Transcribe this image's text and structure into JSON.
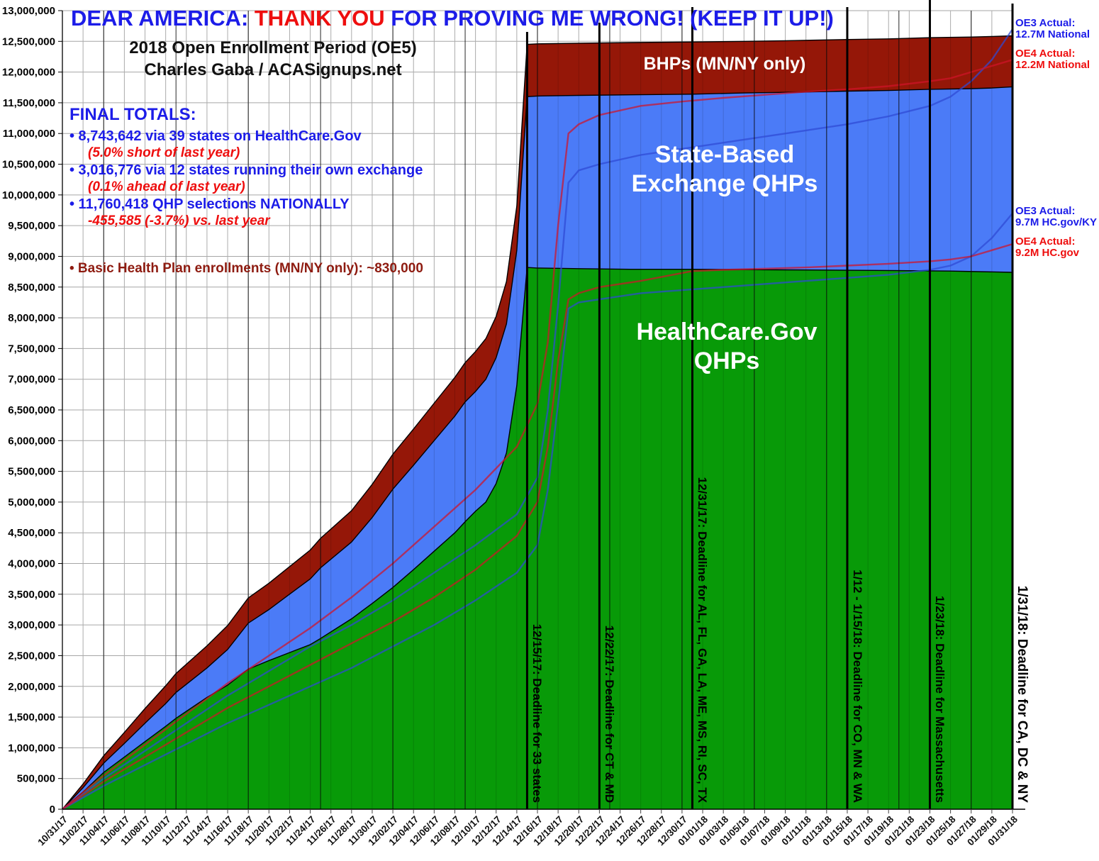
{
  "header": {
    "title_part1": "DEAR AMERICA: ",
    "title_part2": "THANK YOU",
    "title_part3": " FOR PROVING ME WRONG! (KEEP IT UP!)",
    "subtitle_line1": "2018 Open Enrollment Period (OE5)",
    "subtitle_line2": "Charles Gaba / ACASignups.net"
  },
  "totals": {
    "heading": "FINAL TOTALS:",
    "items": [
      {
        "text": "• 8,743,642 via 39 states on HealthCare.Gov",
        "note": "(5.0% short of last year)"
      },
      {
        "text": "• 3,016,776 via 12 states running their own exchange",
        "note": "(0.1% ahead of last year)"
      },
      {
        "text": "• 11,760,418 QHP selections NATIONALLY",
        "note": "-455,585 (-3.7%) vs. last year"
      }
    ],
    "bhp": "• Basic Health Plan enrollments (MN/NY only): ~830,000"
  },
  "area_labels": {
    "bhp": "BHPs (MN/NY only)",
    "sbe1": "State-Based",
    "sbe2": "Exchange QHPs",
    "hc1": "HealthCare.Gov",
    "hc2": "QHPs"
  },
  "annotations": [
    {
      "line1": "OE3 Actual:",
      "line2": "12.7M National"
    },
    {
      "line1": "OE4 Actual:",
      "line2": "12.2M National"
    },
    {
      "line1": "OE3 Actual:",
      "line2": "9.7M HC.gov/KY"
    },
    {
      "line1": "OE4 Actual:",
      "line2": "9.2M HC.gov"
    }
  ],
  "chart_data": {
    "type": "area",
    "stacked": true,
    "units": "millions of enrollments (cumulative)",
    "days_total": 92,
    "ylim": [
      0,
      13000000
    ],
    "y_step": 500000,
    "x_labels": [
      "10/31/17",
      "11/02/17",
      "11/04/17",
      "11/06/17",
      "11/08/17",
      "11/10/17",
      "11/12/17",
      "11/14/17",
      "11/16/17",
      "11/18/17",
      "11/20/17",
      "11/22/17",
      "11/24/17",
      "11/26/17",
      "11/28/17",
      "11/30/17",
      "12/02/17",
      "12/04/17",
      "12/06/17",
      "12/08/17",
      "12/10/17",
      "12/12/17",
      "12/14/17",
      "12/16/17",
      "12/18/17",
      "12/20/17",
      "12/22/17",
      "12/24/17",
      "12/26/17",
      "12/28/17",
      "12/30/17",
      "01/01/18",
      "01/03/18",
      "01/05/18",
      "01/07/18",
      "01/09/18",
      "01/11/18",
      "01/13/18",
      "01/15/18",
      "01/17/18",
      "01/19/18",
      "01/21/18",
      "01/23/18",
      "01/25/18",
      "01/27/18",
      "01/29/18",
      "01/31/18"
    ],
    "series": [
      {
        "name": "HealthCare.Gov QHPs",
        "final_value": 8743642,
        "color": "#089a08",
        "points": [
          [
            0,
            0
          ],
          [
            2,
            0.28
          ],
          [
            4,
            0.6
          ],
          [
            6,
            0.85
          ],
          [
            8,
            1.1
          ],
          [
            10,
            1.35
          ],
          [
            11,
            1.48
          ],
          [
            14,
            1.82
          ],
          [
            16,
            2.02
          ],
          [
            18,
            2.28
          ],
          [
            20,
            2.42
          ],
          [
            22,
            2.55
          ],
          [
            24,
            2.68
          ],
          [
            25,
            2.78
          ],
          [
            28,
            3.1
          ],
          [
            30,
            3.35
          ],
          [
            32,
            3.61
          ],
          [
            34,
            3.9
          ],
          [
            36,
            4.2
          ],
          [
            38,
            4.5
          ],
          [
            39,
            4.68
          ],
          [
            40,
            4.85
          ],
          [
            41,
            5.0
          ],
          [
            42,
            5.3
          ],
          [
            43,
            5.8
          ],
          [
            44,
            6.9
          ],
          [
            45,
            8.82
          ],
          [
            46,
            8.81
          ],
          [
            50,
            8.8
          ],
          [
            55,
            8.79
          ],
          [
            61,
            8.79
          ],
          [
            70,
            8.78
          ],
          [
            80,
            8.77
          ],
          [
            86,
            8.76
          ],
          [
            92,
            8.74
          ]
        ]
      },
      {
        "name": "State-Based Exchange QHPs (top edge = national QHP total)",
        "final_value": 11760418,
        "color": "#4b7bf7",
        "points": [
          [
            0,
            0
          ],
          [
            2,
            0.35
          ],
          [
            4,
            0.75
          ],
          [
            6,
            1.07
          ],
          [
            8,
            1.4
          ],
          [
            10,
            1.72
          ],
          [
            11,
            1.9
          ],
          [
            14,
            2.3
          ],
          [
            16,
            2.6
          ],
          [
            18,
            3.03
          ],
          [
            20,
            3.25
          ],
          [
            22,
            3.5
          ],
          [
            24,
            3.75
          ],
          [
            25,
            3.93
          ],
          [
            28,
            4.35
          ],
          [
            30,
            4.75
          ],
          [
            32,
            5.21
          ],
          [
            34,
            5.6
          ],
          [
            36,
            6.0
          ],
          [
            38,
            6.4
          ],
          [
            39,
            6.63
          ],
          [
            40,
            6.8
          ],
          [
            41,
            7.0
          ],
          [
            42,
            7.35
          ],
          [
            43,
            7.9
          ],
          [
            44,
            9.1
          ],
          [
            45,
            11.6
          ],
          [
            46,
            11.61
          ],
          [
            50,
            11.62
          ],
          [
            55,
            11.63
          ],
          [
            61,
            11.64
          ],
          [
            66,
            11.66
          ],
          [
            70,
            11.67
          ],
          [
            76,
            11.69
          ],
          [
            80,
            11.7
          ],
          [
            84,
            11.72
          ],
          [
            88,
            11.73
          ],
          [
            90,
            11.74
          ],
          [
            92,
            11.76
          ]
        ]
      },
      {
        "name": "BHPs MN/NY only (top edge = national + BHP ~830,000)",
        "final_value": 12590418,
        "color": "#951708",
        "points": [
          [
            0,
            0
          ],
          [
            2,
            0.41
          ],
          [
            4,
            0.87
          ],
          [
            6,
            1.25
          ],
          [
            8,
            1.64
          ],
          [
            10,
            2.01
          ],
          [
            11,
            2.21
          ],
          [
            14,
            2.66
          ],
          [
            16,
            2.99
          ],
          [
            18,
            3.44
          ],
          [
            20,
            3.68
          ],
          [
            22,
            3.95
          ],
          [
            24,
            4.22
          ],
          [
            25,
            4.41
          ],
          [
            28,
            4.86
          ],
          [
            30,
            5.29
          ],
          [
            32,
            5.78
          ],
          [
            34,
            6.19
          ],
          [
            36,
            6.61
          ],
          [
            38,
            7.03
          ],
          [
            39,
            7.27
          ],
          [
            40,
            7.45
          ],
          [
            41,
            7.66
          ],
          [
            42,
            8.02
          ],
          [
            43,
            8.59
          ],
          [
            44,
            9.82
          ],
          [
            45,
            12.45
          ],
          [
            46,
            12.46
          ],
          [
            50,
            12.47
          ],
          [
            55,
            12.48
          ],
          [
            61,
            12.49
          ],
          [
            66,
            12.5
          ],
          [
            70,
            12.51
          ],
          [
            76,
            12.53
          ],
          [
            80,
            12.54
          ],
          [
            84,
            12.56
          ],
          [
            88,
            12.57
          ],
          [
            90,
            12.58
          ],
          [
            92,
            12.59
          ]
        ]
      }
    ],
    "pace_lines": [
      {
        "name": "OE3 national pace (ends 12.7M)",
        "color": "#2e49d4",
        "points": [
          [
            0,
            0
          ],
          [
            4,
            0.5
          ],
          [
            8,
            0.95
          ],
          [
            12,
            1.4
          ],
          [
            16,
            1.85
          ],
          [
            20,
            2.25
          ],
          [
            24,
            2.65
          ],
          [
            28,
            3.0
          ],
          [
            32,
            3.4
          ],
          [
            36,
            3.85
          ],
          [
            40,
            4.3
          ],
          [
            44,
            4.8
          ],
          [
            46,
            5.4
          ],
          [
            47,
            6.5
          ],
          [
            48,
            8.2
          ],
          [
            49,
            10.2
          ],
          [
            50,
            10.4
          ],
          [
            52,
            10.5
          ],
          [
            56,
            10.65
          ],
          [
            60,
            10.75
          ],
          [
            64,
            10.85
          ],
          [
            68,
            10.95
          ],
          [
            72,
            11.05
          ],
          [
            76,
            11.15
          ],
          [
            80,
            11.28
          ],
          [
            84,
            11.45
          ],
          [
            86,
            11.6
          ],
          [
            88,
            11.85
          ],
          [
            90,
            12.2
          ],
          [
            92,
            12.7
          ]
        ]
      },
      {
        "name": "OE4 national pace (ends 12.2M)",
        "color": "#d01328",
        "points": [
          [
            0,
            0
          ],
          [
            4,
            0.55
          ],
          [
            8,
            1.05
          ],
          [
            12,
            1.55
          ],
          [
            16,
            2.05
          ],
          [
            20,
            2.5
          ],
          [
            24,
            2.95
          ],
          [
            28,
            3.45
          ],
          [
            32,
            4.0
          ],
          [
            36,
            4.6
          ],
          [
            40,
            5.2
          ],
          [
            44,
            5.9
          ],
          [
            46,
            6.6
          ],
          [
            47,
            7.6
          ],
          [
            48,
            9.5
          ],
          [
            49,
            11.0
          ],
          [
            50,
            11.15
          ],
          [
            52,
            11.3
          ],
          [
            56,
            11.45
          ],
          [
            60,
            11.52
          ],
          [
            64,
            11.58
          ],
          [
            68,
            11.63
          ],
          [
            72,
            11.68
          ],
          [
            76,
            11.72
          ],
          [
            80,
            11.77
          ],
          [
            84,
            11.85
          ],
          [
            86,
            11.9
          ],
          [
            88,
            12.0
          ],
          [
            90,
            12.1
          ],
          [
            92,
            12.2
          ]
        ]
      },
      {
        "name": "OE3 HC.gov/KY pace (ends 9.7M)",
        "color": "#2e49d4",
        "points": [
          [
            0,
            0
          ],
          [
            4,
            0.38
          ],
          [
            8,
            0.72
          ],
          [
            12,
            1.06
          ],
          [
            16,
            1.4
          ],
          [
            20,
            1.7
          ],
          [
            24,
            2.0
          ],
          [
            28,
            2.3
          ],
          [
            32,
            2.65
          ],
          [
            36,
            3.0
          ],
          [
            40,
            3.4
          ],
          [
            44,
            3.85
          ],
          [
            46,
            4.3
          ],
          [
            47,
            5.2
          ],
          [
            48,
            6.6
          ],
          [
            49,
            8.15
          ],
          [
            50,
            8.25
          ],
          [
            52,
            8.3
          ],
          [
            56,
            8.4
          ],
          [
            60,
            8.45
          ],
          [
            64,
            8.5
          ],
          [
            68,
            8.55
          ],
          [
            72,
            8.6
          ],
          [
            76,
            8.65
          ],
          [
            80,
            8.7
          ],
          [
            84,
            8.78
          ],
          [
            86,
            8.85
          ],
          [
            88,
            9.0
          ],
          [
            90,
            9.3
          ],
          [
            92,
            9.7
          ]
        ]
      },
      {
        "name": "OE4 HC.gov pace (ends 9.2M)",
        "color": "#d01328",
        "points": [
          [
            0,
            0
          ],
          [
            4,
            0.45
          ],
          [
            8,
            0.85
          ],
          [
            12,
            1.25
          ],
          [
            16,
            1.65
          ],
          [
            20,
            2.0
          ],
          [
            24,
            2.35
          ],
          [
            28,
            2.7
          ],
          [
            32,
            3.05
          ],
          [
            36,
            3.45
          ],
          [
            40,
            3.9
          ],
          [
            44,
            4.45
          ],
          [
            46,
            5.0
          ],
          [
            47,
            5.9
          ],
          [
            48,
            7.3
          ],
          [
            49,
            8.3
          ],
          [
            50,
            8.4
          ],
          [
            52,
            8.5
          ],
          [
            56,
            8.6
          ],
          [
            61,
            8.76
          ],
          [
            64,
            8.78
          ],
          [
            68,
            8.8
          ],
          [
            72,
            8.82
          ],
          [
            76,
            8.85
          ],
          [
            80,
            8.88
          ],
          [
            84,
            8.92
          ],
          [
            86,
            8.95
          ],
          [
            88,
            9.0
          ],
          [
            90,
            9.1
          ],
          [
            92,
            9.2
          ]
        ]
      }
    ],
    "deadlines": [
      {
        "day": 45,
        "label": "12/15/17: Deadline for 33 states",
        "top": 45,
        "size": 17
      },
      {
        "day": 52,
        "label": "12/22/17: Deadline for CT & MD",
        "top": 32,
        "size": 17
      },
      {
        "day": 61,
        "label": "12/31/17: Deadline for AL, FL, GA, LA, ME, MS, RI, SC, TX",
        "top": 10,
        "size": 17
      },
      {
        "day": 76,
        "label": "1/12 - 1/15/18: Deadline for CO, MN & WA",
        "top": 10,
        "size": 17
      },
      {
        "day": 84,
        "label": "1/23/18: Deadline for Massachusetts",
        "top": 0,
        "size": 17
      },
      {
        "day": 92,
        "label": "1/31/18: Deadline for CA, DC & NY",
        "top": 5,
        "size": 19
      }
    ],
    "week_line_days": [
      4,
      11,
      18,
      25,
      32,
      39,
      46,
      53,
      60,
      67,
      74,
      81,
      88
    ]
  }
}
